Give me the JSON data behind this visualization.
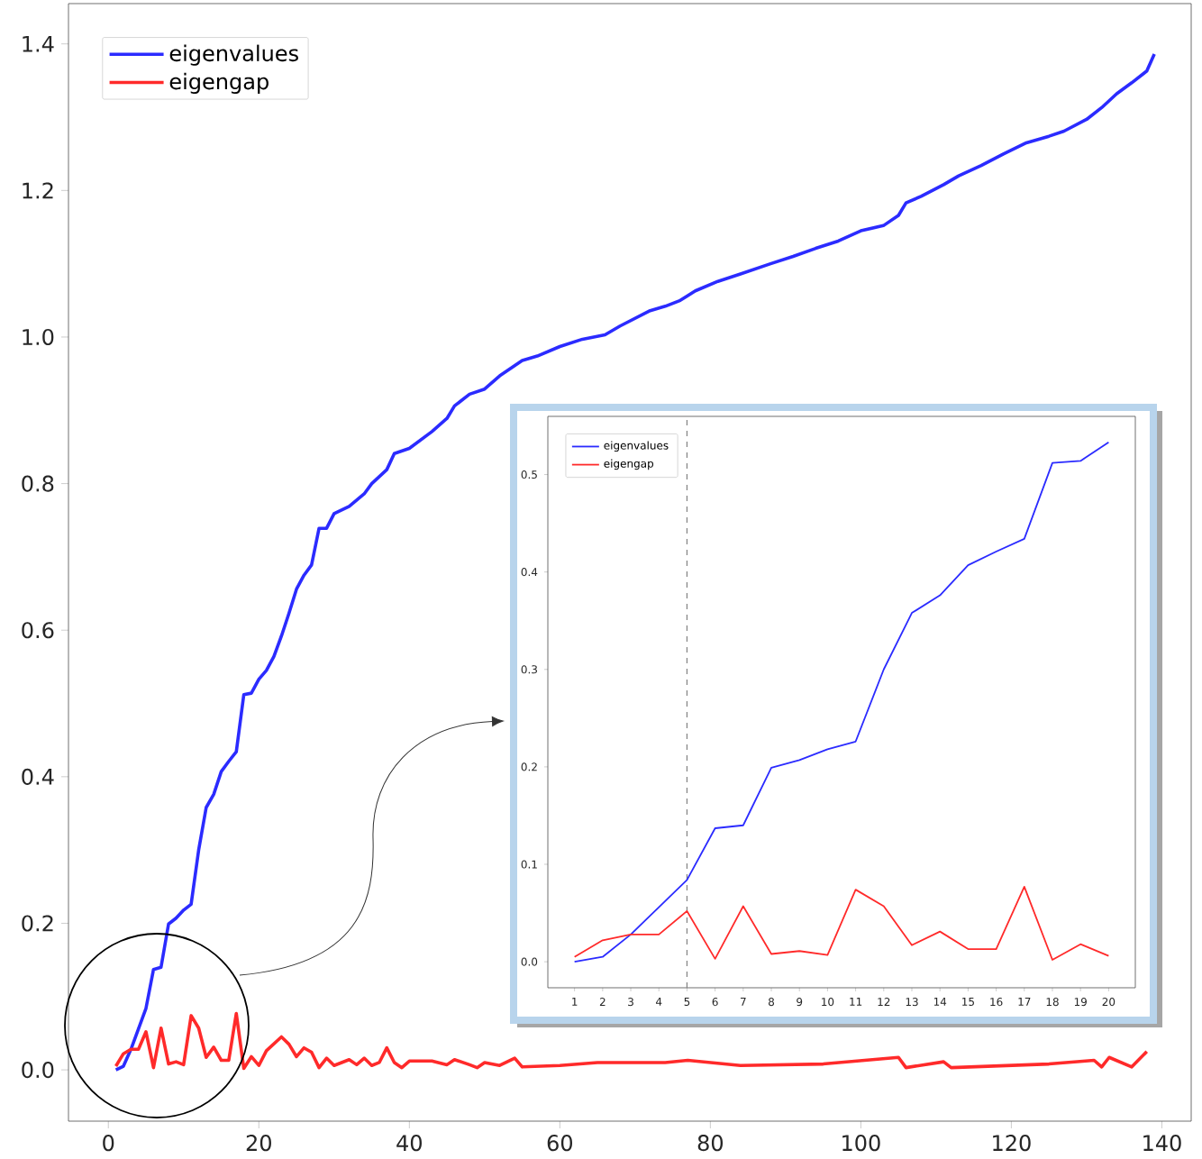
{
  "chart_data": [
    {
      "type": "line",
      "legend": "top left",
      "xlim": [
        -5.3,
        143.9
      ],
      "ylim": [
        -0.07,
        1.455
      ],
      "xticks": [
        0,
        20,
        40,
        60,
        80,
        100,
        120,
        140
      ],
      "yticks": [
        {
          "value": 0,
          "label": "0.0"
        },
        {
          "value": 0.2,
          "label": "0.2"
        },
        {
          "value": 0.4,
          "label": "0.4"
        },
        {
          "value": 0.6,
          "label": "0.6"
        },
        {
          "value": 0.8,
          "label": "0.8"
        },
        {
          "value": 1.0,
          "label": "1.0"
        },
        {
          "value": 1.2,
          "label": "1.2"
        },
        {
          "value": 1.4,
          "label": "1.4"
        }
      ],
      "series": [
        {
          "name": "eigenvalues",
          "color": "#2b2bff",
          "x": [
            1,
            2,
            3,
            4,
            5,
            6,
            7,
            8,
            9,
            10,
            11,
            12,
            13,
            14,
            15,
            16,
            17,
            18,
            19,
            20,
            21,
            22,
            23,
            24,
            25,
            26,
            27,
            28,
            29,
            30,
            32,
            34,
            35,
            37,
            38,
            40,
            43,
            45,
            46,
            48,
            50,
            52,
            55,
            57,
            60,
            63,
            66,
            68,
            72,
            74,
            76,
            78,
            81,
            84,
            88,
            91,
            94,
            97,
            100,
            103,
            105,
            106,
            108,
            111,
            113,
            116,
            119,
            122,
            125,
            127,
            130,
            132,
            134,
            136,
            138,
            139
          ],
          "values": [
            0,
            0.005,
            0.028,
            0.056,
            0.084,
            0.137,
            0.14,
            0.199,
            0.207,
            0.218,
            0.226,
            0.3,
            0.358,
            0.376,
            0.407,
            0.421,
            0.434,
            0.512,
            0.514,
            0.533,
            0.545,
            0.564,
            0.592,
            0.623,
            0.656,
            0.675,
            0.689,
            0.739,
            0.739,
            0.759,
            0.769,
            0.786,
            0.8,
            0.819,
            0.841,
            0.848,
            0.871,
            0.889,
            0.906,
            0.922,
            0.929,
            0.947,
            0.968,
            0.974,
            0.987,
            0.997,
            1.003,
            1.015,
            1.036,
            1.042,
            1.05,
            1.063,
            1.076,
            1.086,
            1.1,
            1.11,
            1.121,
            1.131,
            1.145,
            1.152,
            1.166,
            1.183,
            1.192,
            1.208,
            1.22,
            1.234,
            1.25,
            1.265,
            1.274,
            1.281,
            1.297,
            1.313,
            1.332,
            1.347,
            1.363,
            1.386
          ]
        },
        {
          "name": "eigengap",
          "color": "#ff2a2a",
          "x": [
            1,
            2,
            3,
            4,
            5,
            6,
            7,
            8,
            9,
            10,
            11,
            12,
            13,
            14,
            15,
            16,
            17,
            18,
            19,
            20,
            21,
            23,
            24,
            25,
            26,
            27,
            28,
            29,
            30,
            32,
            33,
            34,
            35,
            36,
            37,
            38,
            39,
            40,
            43,
            45,
            46,
            48,
            49,
            50,
            52,
            54,
            55,
            60,
            65,
            74,
            77,
            84,
            95,
            105,
            106,
            111,
            112,
            125,
            131,
            132,
            133,
            136,
            138
          ],
          "values": [
            0.005,
            0.022,
            0.028,
            0.028,
            0.052,
            0.003,
            0.057,
            0.008,
            0.011,
            0.007,
            0.074,
            0.057,
            0.017,
            0.031,
            0.013,
            0.013,
            0.077,
            0.002,
            0.018,
            0.006,
            0.026,
            0.045,
            0.035,
            0.018,
            0.03,
            0.024,
            0.003,
            0.016,
            0.006,
            0.014,
            0.007,
            0.016,
            0.006,
            0.01,
            0.03,
            0.01,
            0.003,
            0.012,
            0.012,
            0.007,
            0.014,
            0.007,
            0.003,
            0.01,
            0.006,
            0.016,
            0.004,
            0.006,
            0.01,
            0.01,
            0.013,
            0.006,
            0.008,
            0.017,
            0.003,
            0.011,
            0.003,
            0.008,
            0.013,
            0.004,
            0.017,
            0.004,
            0.025
          ]
        }
      ]
    },
    {
      "type": "line",
      "legend": "top left",
      "xlim": [
        0.05,
        20.95
      ],
      "ylim": [
        -0.0267,
        0.5597
      ],
      "xticks": [
        1,
        2,
        3,
        4,
        5,
        6,
        7,
        8,
        9,
        10,
        11,
        12,
        13,
        14,
        15,
        16,
        17,
        18,
        19,
        20
      ],
      "yticks": [
        {
          "value": 0,
          "label": "0.0"
        },
        {
          "value": 0.1,
          "label": "0.1"
        },
        {
          "value": 0.2,
          "label": "0.2"
        },
        {
          "value": 0.3,
          "label": "0.3"
        },
        {
          "value": 0.4,
          "label": "0.4"
        },
        {
          "value": 0.5,
          "label": "0.5"
        }
      ],
      "ref_lines": [
        {
          "axis": "x",
          "value": 5,
          "color": "#808080",
          "line_style": "dashed"
        }
      ],
      "series": [
        {
          "name": "eigenvalues",
          "color": "#2b2bff",
          "x": [
            1,
            2,
            3,
            4,
            5,
            6,
            7,
            8,
            9,
            10,
            11,
            12,
            13,
            14,
            15,
            16,
            17,
            18,
            19,
            20
          ],
          "values": [
            0,
            0.005,
            0.028,
            0.056,
            0.084,
            0.137,
            0.14,
            0.199,
            0.207,
            0.218,
            0.226,
            0.3,
            0.358,
            0.376,
            0.407,
            0.421,
            0.434,
            0.512,
            0.514,
            0.533
          ]
        },
        {
          "name": "eigengap",
          "color": "#ff2a2a",
          "x": [
            1,
            2,
            3,
            4,
            5,
            6,
            7,
            8,
            9,
            10,
            11,
            12,
            13,
            14,
            15,
            16,
            17,
            18,
            19,
            20
          ],
          "values": [
            0.005,
            0.022,
            0.028,
            0.028,
            0.052,
            0.003,
            0.057,
            0.008,
            0.011,
            0.007,
            0.074,
            0.057,
            0.017,
            0.031,
            0.013,
            0.013,
            0.077,
            0.002,
            0.018,
            0.006
          ]
        }
      ]
    }
  ]
}
